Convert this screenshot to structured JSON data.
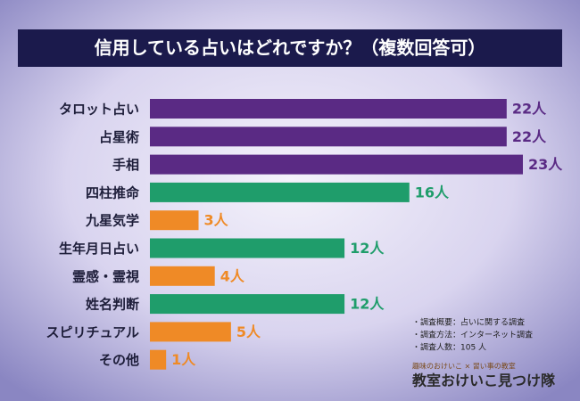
{
  "chart_data": {
    "type": "barh",
    "title": "信用している占いはどれですか？（複数回答可）",
    "categories": [
      "タロット占い",
      "占星術",
      "手相",
      "四柱推命",
      "九星気学",
      "生年月日占い",
      "霊感・霊視",
      "姓名判断",
      "スピリチュアル",
      "その他"
    ],
    "values": [
      22,
      22,
      23,
      16,
      3,
      12,
      4,
      12,
      5,
      1
    ],
    "value_labels": [
      "22人",
      "22人",
      "23人",
      "16人",
      "3人",
      "12人",
      "4人",
      "12人",
      "5人",
      "1人"
    ],
    "colors": [
      "#5a2a84",
      "#5a2a84",
      "#5a2a84",
      "#1f9d6b",
      "#ef8a26",
      "#1f9d6b",
      "#ef8a26",
      "#1f9d6b",
      "#ef8a26",
      "#ef8a26"
    ]
  },
  "notes": [
    "・調査概要：占いに関する調査",
    "・調査方法：インターネット調査",
    "・調査人数：105 人"
  ],
  "logo": {
    "tagline": "趣味のおけいこ × 習い事の教室",
    "name": "教室おけいこ見つけ隊"
  }
}
